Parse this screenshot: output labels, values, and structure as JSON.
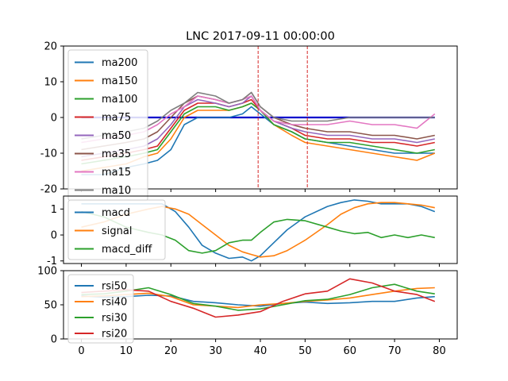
{
  "title": "LNC 2017-09-11 00:00:00",
  "chart_data": [
    {
      "type": "line",
      "panel": "moving-averages",
      "xlim": [
        -4,
        84
      ],
      "ylim": [
        -20,
        20
      ],
      "yticks": [
        -20,
        -10,
        0,
        10,
        20
      ],
      "xticks": [
        0,
        10,
        20,
        30,
        40,
        50,
        60,
        70,
        80
      ],
      "legend": "upper-left",
      "hline": {
        "y": 0,
        "x_start": 0,
        "x_end": 79,
        "color": "#0000cc"
      },
      "vlines": [
        {
          "x": 39.5,
          "color": "#d62728"
        },
        {
          "x": 50.5,
          "color": "#d62728"
        }
      ],
      "series": [
        {
          "name": "ma200",
          "color": "#1f77b4",
          "x": [
            0,
            5,
            10,
            14,
            17,
            20,
            23,
            26,
            30,
            33,
            36,
            38,
            40,
            43,
            47,
            50,
            55,
            60,
            65,
            70,
            75,
            79
          ],
          "y": [
            -16,
            -16,
            -14,
            -13,
            -12,
            -9,
            -2,
            0,
            0,
            0,
            1,
            3,
            1,
            -2,
            -4,
            -6,
            -7,
            -8,
            -9,
            -10,
            -10,
            -10
          ]
        },
        {
          "name": "ma150",
          "color": "#ff7f0e",
          "x": [
            0,
            5,
            10,
            14,
            17,
            20,
            23,
            26,
            30,
            33,
            36,
            38,
            40,
            43,
            47,
            50,
            55,
            60,
            65,
            70,
            75,
            79
          ],
          "y": [
            -15,
            -14,
            -13,
            -11,
            -10,
            -6,
            0,
            2,
            2,
            2,
            3,
            4,
            2,
            -2,
            -5,
            -7,
            -8,
            -9,
            -10,
            -11,
            -12,
            -10
          ]
        },
        {
          "name": "ma100",
          "color": "#2ca02c",
          "x": [
            0,
            5,
            10,
            14,
            17,
            20,
            23,
            26,
            30,
            33,
            36,
            38,
            40,
            43,
            47,
            50,
            55,
            60,
            65,
            70,
            75,
            79
          ],
          "y": [
            -13,
            -12,
            -11,
            -10,
            -9,
            -4,
            1,
            3,
            3,
            2,
            3,
            4,
            2,
            -2,
            -4,
            -6,
            -7,
            -7,
            -8,
            -9,
            -10,
            -9
          ]
        },
        {
          "name": "ma75",
          "color": "#d62728",
          "x": [
            0,
            5,
            10,
            14,
            17,
            20,
            23,
            26,
            30,
            33,
            36,
            38,
            40,
            43,
            47,
            50,
            55,
            60,
            65,
            70,
            75,
            79
          ],
          "y": [
            -12,
            -11,
            -10,
            -9,
            -8,
            -3,
            2,
            4,
            4,
            3,
            4,
            5,
            2,
            -1,
            -3,
            -5,
            -6,
            -6,
            -7,
            -7,
            -8,
            -7
          ]
        },
        {
          "name": "ma50",
          "color": "#9467bd",
          "x": [
            0,
            5,
            10,
            14,
            17,
            20,
            23,
            26,
            30,
            33,
            36,
            38,
            40,
            43,
            47,
            50,
            55,
            60,
            65,
            70,
            75,
            79
          ],
          "y": [
            -11,
            -10,
            -9,
            -8,
            -6,
            -2,
            3,
            5,
            4,
            3,
            4,
            6,
            2,
            -1,
            -3,
            -4,
            -5,
            -5,
            -6,
            -6,
            -7,
            -6
          ]
        },
        {
          "name": "ma35",
          "color": "#8c564b",
          "x": [
            0,
            5,
            10,
            14,
            17,
            20,
            23,
            26,
            30,
            33,
            36,
            38,
            40,
            43,
            47,
            50,
            55,
            60,
            65,
            70,
            75,
            79
          ],
          "y": [
            -9,
            -8,
            -7,
            -6,
            -4,
            0,
            4,
            6,
            5,
            4,
            5,
            7,
            3,
            0,
            -2,
            -3,
            -4,
            -4,
            -5,
            -5,
            -6,
            -5
          ]
        },
        {
          "name": "ma15",
          "color": "#e377c2",
          "x": [
            0,
            5,
            10,
            14,
            17,
            20,
            23,
            26,
            30,
            33,
            36,
            38,
            40,
            43,
            47,
            50,
            55,
            60,
            65,
            70,
            75,
            79
          ],
          "y": [
            -7,
            -6,
            -5,
            -4,
            -2,
            1,
            3,
            6,
            5,
            4,
            5,
            6,
            2,
            -1,
            -2,
            -2,
            -2,
            -1,
            -2,
            -2,
            -3,
            1
          ]
        },
        {
          "name": "ma10",
          "color": "#7f7f7f",
          "x": [
            0,
            5,
            10,
            14,
            17,
            20,
            23,
            26,
            30,
            33,
            36,
            38,
            40,
            43,
            47,
            50,
            55,
            60,
            65,
            70,
            75,
            79
          ],
          "y": [
            -6,
            -5,
            -4,
            -3,
            -1,
            2,
            4,
            7,
            6,
            4,
            5,
            7,
            3,
            0,
            -1,
            -1,
            -1,
            0,
            0,
            0,
            0,
            0
          ]
        }
      ]
    },
    {
      "type": "line",
      "panel": "macd",
      "xlim": [
        -4,
        84
      ],
      "ylim": [
        -1.1,
        1.5
      ],
      "yticks": [
        -1,
        0,
        1
      ],
      "xticks": [
        0,
        10,
        20,
        30,
        40,
        50,
        60,
        70,
        80
      ],
      "legend": "upper-left",
      "series": [
        {
          "name": "macd",
          "color": "#1f77b4",
          "x": [
            0,
            5,
            10,
            15,
            18,
            21,
            24,
            27,
            30,
            33,
            36,
            38,
            40,
            43,
            46,
            50,
            55,
            58,
            61,
            64,
            67,
            70,
            73,
            76,
            79
          ],
          "y": [
            1.2,
            1.2,
            1.2,
            1.2,
            1.2,
            0.9,
            0.3,
            -0.4,
            -0.7,
            -0.9,
            -0.85,
            -1.0,
            -0.8,
            -0.3,
            0.2,
            0.7,
            1.1,
            1.25,
            1.35,
            1.3,
            1.2,
            1.2,
            1.2,
            1.1,
            0.9
          ]
        },
        {
          "name": "signal",
          "color": "#ff7f0e",
          "x": [
            0,
            5,
            10,
            15,
            18,
            21,
            24,
            27,
            30,
            33,
            36,
            38,
            40,
            43,
            46,
            50,
            55,
            58,
            61,
            64,
            67,
            70,
            73,
            76,
            79
          ],
          "y": [
            0.3,
            0.5,
            0.8,
            1.0,
            1.1,
            1.0,
            0.8,
            0.4,
            0.0,
            -0.4,
            -0.65,
            -0.75,
            -0.85,
            -0.8,
            -0.6,
            -0.2,
            0.4,
            0.8,
            1.05,
            1.2,
            1.25,
            1.25,
            1.2,
            1.15,
            1.05
          ]
        },
        {
          "name": "macd_diff",
          "color": "#2ca02c",
          "x": [
            0,
            5,
            10,
            15,
            18,
            21,
            24,
            27,
            30,
            33,
            36,
            38,
            40,
            43,
            46,
            50,
            55,
            58,
            61,
            64,
            67,
            70,
            73,
            76,
            79
          ],
          "y": [
            0.9,
            0.7,
            0.3,
            0.1,
            0.0,
            -0.2,
            -0.6,
            -0.7,
            -0.6,
            -0.3,
            -0.2,
            -0.2,
            0.1,
            0.5,
            0.6,
            0.55,
            0.3,
            0.15,
            0.05,
            0.1,
            -0.1,
            0.0,
            -0.1,
            0.0,
            -0.1
          ]
        }
      ]
    },
    {
      "type": "line",
      "panel": "rsi",
      "xlim": [
        -4,
        84
      ],
      "ylim": [
        0,
        100
      ],
      "yticks": [
        0,
        50,
        100
      ],
      "xticks": [
        0,
        10,
        20,
        30,
        40,
        50,
        60,
        70,
        80
      ],
      "legend": "upper-left",
      "series": [
        {
          "name": "rsi50",
          "color": "#1f77b4",
          "x": [
            0,
            5,
            10,
            15,
            20,
            25,
            30,
            35,
            40,
            45,
            50,
            55,
            60,
            65,
            70,
            75,
            79
          ],
          "y": [
            63,
            61,
            62,
            64,
            63,
            55,
            53,
            50,
            48,
            52,
            54,
            52,
            53,
            55,
            55,
            60,
            62
          ]
        },
        {
          "name": "rsi40",
          "color": "#ff7f0e",
          "x": [
            0,
            5,
            10,
            15,
            20,
            25,
            30,
            35,
            40,
            45,
            50,
            55,
            60,
            65,
            70,
            75,
            79
          ],
          "y": [
            62,
            63,
            65,
            67,
            62,
            50,
            48,
            46,
            50,
            52,
            55,
            57,
            60,
            65,
            70,
            74,
            75
          ]
        },
        {
          "name": "rsi30",
          "color": "#2ca02c",
          "x": [
            0,
            5,
            10,
            15,
            20,
            25,
            30,
            35,
            40,
            45,
            50,
            55,
            60,
            65,
            70,
            75,
            79
          ],
          "y": [
            65,
            66,
            70,
            75,
            65,
            52,
            48,
            42,
            44,
            50,
            56,
            58,
            65,
            75,
            80,
            70,
            66
          ]
        },
        {
          "name": "rsi20",
          "color": "#d62728",
          "x": [
            0,
            5,
            10,
            15,
            20,
            25,
            30,
            35,
            40,
            45,
            50,
            55,
            60,
            65,
            70,
            75,
            79
          ],
          "y": [
            68,
            70,
            72,
            70,
            55,
            45,
            32,
            35,
            40,
            55,
            66,
            70,
            88,
            82,
            70,
            65,
            55
          ]
        }
      ]
    }
  ]
}
